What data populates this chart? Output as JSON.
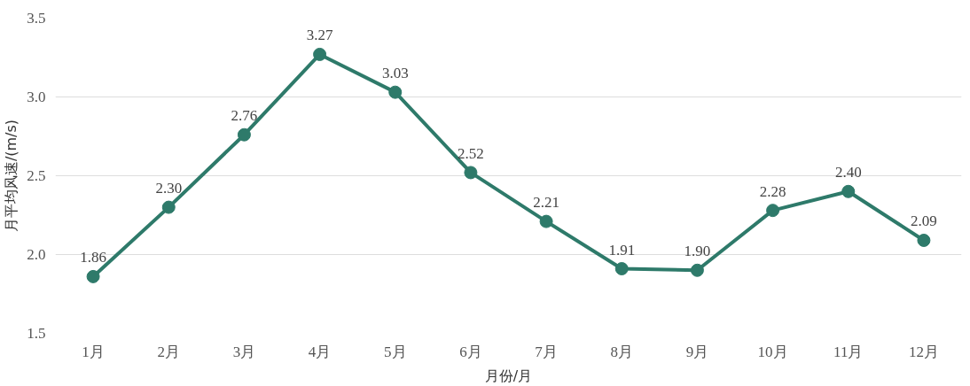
{
  "chart_data": {
    "type": "line",
    "xlabel": "月份/月",
    "ylabel": "月平均风速/(m/s)",
    "categories": [
      "1月",
      "2月",
      "3月",
      "4月",
      "5月",
      "6月",
      "7月",
      "8月",
      "9月",
      "10月",
      "11月",
      "12月"
    ],
    "series": [
      {
        "color": "#2e7a6a",
        "values": [
          1.86,
          2.3,
          2.76,
          3.27,
          3.03,
          2.52,
          2.21,
          1.91,
          1.9,
          2.28,
          2.4,
          2.09
        ],
        "value_labels": [
          "1.86",
          "2.30",
          "2.76",
          "3.27",
          "3.03",
          "2.52",
          "2.21",
          "1.91",
          "1.90",
          "2.28",
          "2.40",
          "2.09"
        ]
      }
    ],
    "ylim": [
      1.5,
      3.5
    ],
    "yticks": [
      {
        "value": 1.5,
        "label": "1.5"
      },
      {
        "value": 2,
        "label": "2.0"
      },
      {
        "value": 2.5,
        "label": "2.5"
      },
      {
        "value": 3,
        "label": "3.0"
      },
      {
        "value": 3.5,
        "label": "3.5"
      }
    ],
    "grid": "y",
    "marker": "circle",
    "line_style": "solid"
  }
}
